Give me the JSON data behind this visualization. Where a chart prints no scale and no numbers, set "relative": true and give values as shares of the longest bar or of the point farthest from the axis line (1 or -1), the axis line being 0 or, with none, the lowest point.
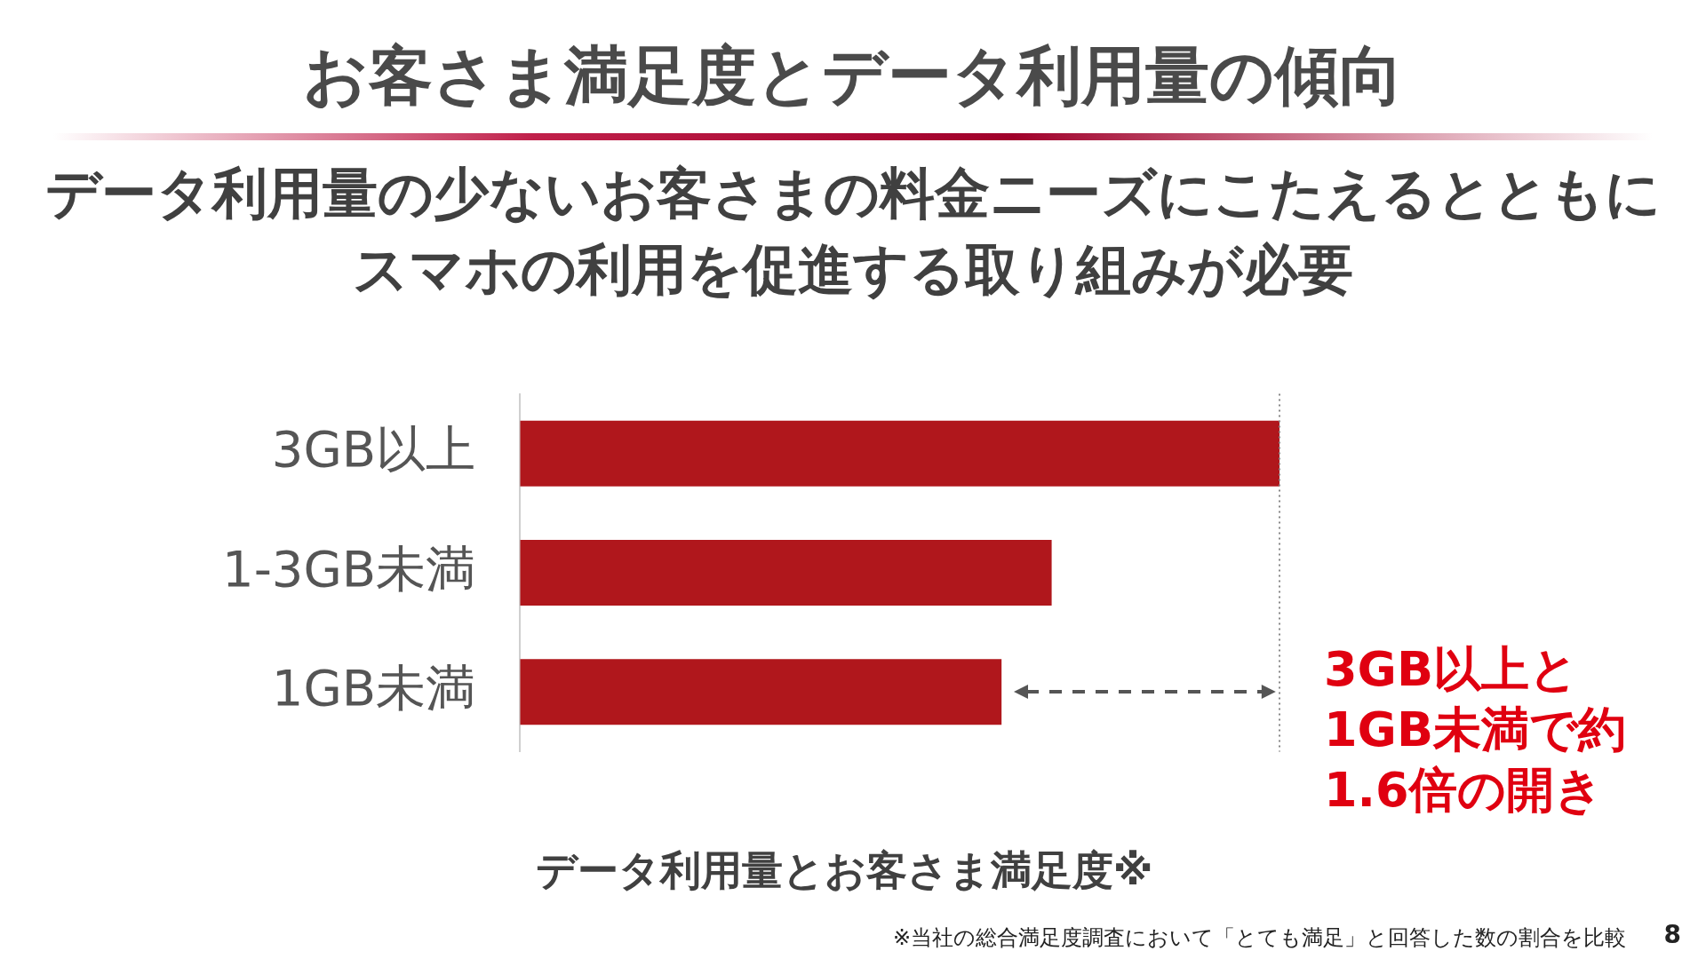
{
  "chart_data": {
    "type": "bar",
    "orientation": "horizontal",
    "relative": true,
    "title": "お客さま満足度とデータ利用量の傾向",
    "subtitle": "データ利用量の少ないお客さまの料金ニーズにこたえるとともにスマホの利用を促進する取り組みが必要",
    "xlabel": "データ利用量とお客さま満足度※",
    "categories": [
      "3GB以上",
      "1-3GB未満",
      "1GB未満"
    ],
    "values": [
      1,
      0.7,
      0.634
    ],
    "color": "#b0171c",
    "ref_lines": [
      {
        "axis": "x",
        "value": 1,
        "color": "#888888",
        "line_style": "dotted"
      }
    ],
    "annotations": [
      "3GB以上と1GB未満で約1.6倍の開き",
      "※当社の総合満足度調査において「とても満足」と回答した数の割合を比較",
      "8"
    ],
    "grid": false,
    "legend": false
  }
}
